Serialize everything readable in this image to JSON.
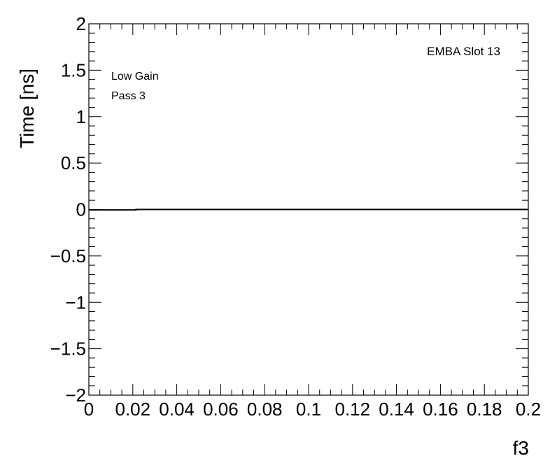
{
  "chart_data": {
    "type": "line",
    "title": "",
    "xlabel": "f3",
    "ylabel": "Time [ns]",
    "xlim": [
      0,
      0.2
    ],
    "ylim": [
      -2,
      2
    ],
    "grid": false,
    "x_ticks": [
      "0",
      "0.02",
      "0.04",
      "0.06",
      "0.08",
      "0.1",
      "0.12",
      "0.14",
      "0.16",
      "0.18",
      "0.2"
    ],
    "y_ticks": [
      "−2",
      "−1.5",
      "−1",
      "−0.5",
      "0",
      "0.5",
      "1",
      "1.5",
      "2"
    ],
    "series": [
      {
        "x": [
          0,
          0.0215,
          0.0215,
          0.2
        ],
        "y": [
          -0.005,
          -0.005,
          0.0,
          0.0
        ],
        "color": "#000000"
      }
    ],
    "annotations": {
      "label_tr": "EMBA Slot 13",
      "label_gain": "Low Gain",
      "label_pass": "Pass 3"
    }
  }
}
